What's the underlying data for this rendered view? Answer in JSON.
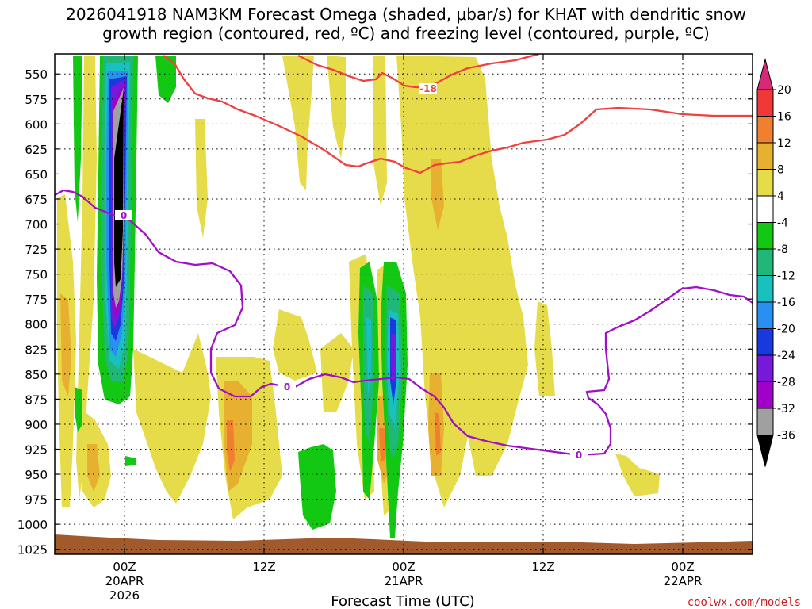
{
  "title_line1": "2026041918 NAM3KM Forecast Omega (shaded, μbar/s) for KHAT with dendritic snow",
  "title_line2": "growth region (contoured, red, ºC) and freezing level (contoured, purple, ºC)",
  "credit": "coolwx.com/models",
  "chart_data": {
    "type": "heatmap",
    "title": "2026041918 NAM3KM Forecast Omega (shaded, μbar/s) for KHAT with dendritic snow growth region (contoured, red, ºC) and freezing level (contoured, purple, ºC)",
    "xlabel": "Forecast Time (UTC)",
    "ylabel": "",
    "y_levels": [
      "550",
      "575",
      "600",
      "625",
      "650",
      "675",
      "700",
      "725",
      "750",
      "775",
      "800",
      "825",
      "850",
      "875",
      "900",
      "925",
      "950",
      "975",
      "1000",
      "1025"
    ],
    "x_ticks": [
      {
        "hour": 6,
        "line1": "00Z",
        "line2": "20APR",
        "line3": "2026"
      },
      {
        "hour": 18,
        "line1": "12Z",
        "line2": "",
        "line3": ""
      },
      {
        "hour": 30,
        "line1": "00Z",
        "line2": "21APR",
        "line3": ""
      },
      {
        "hour": 42,
        "line1": "12Z",
        "line2": "",
        "line3": ""
      },
      {
        "hour": 54,
        "line1": "00Z",
        "line2": "22APR",
        "line3": ""
      }
    ],
    "xlim": [
      0,
      60
    ],
    "ylim_hpa": [
      530,
      1030
    ],
    "grid": true,
    "colorbar": {
      "labels": [
        "20",
        "16",
        "12",
        "8",
        "4",
        "-4",
        "-8",
        "-12",
        "-16",
        "-20",
        "-24",
        "-28",
        "-32",
        "-36"
      ],
      "colors": [
        "#d8287a",
        "#f03838",
        "#f08030",
        "#e8b030",
        "#e6dc4a",
        "#ffffff",
        "#12c812",
        "#20b878",
        "#18c0c0",
        "#2890f0",
        "#1838e0",
        "#7818d8",
        "#a000c8",
        "#a0a0a0",
        "#000000"
      ]
    },
    "contours": [
      {
        "label": "-18",
        "color": "#f04040"
      },
      {
        "label": "0",
        "color": "#a010c8"
      }
    ]
  }
}
